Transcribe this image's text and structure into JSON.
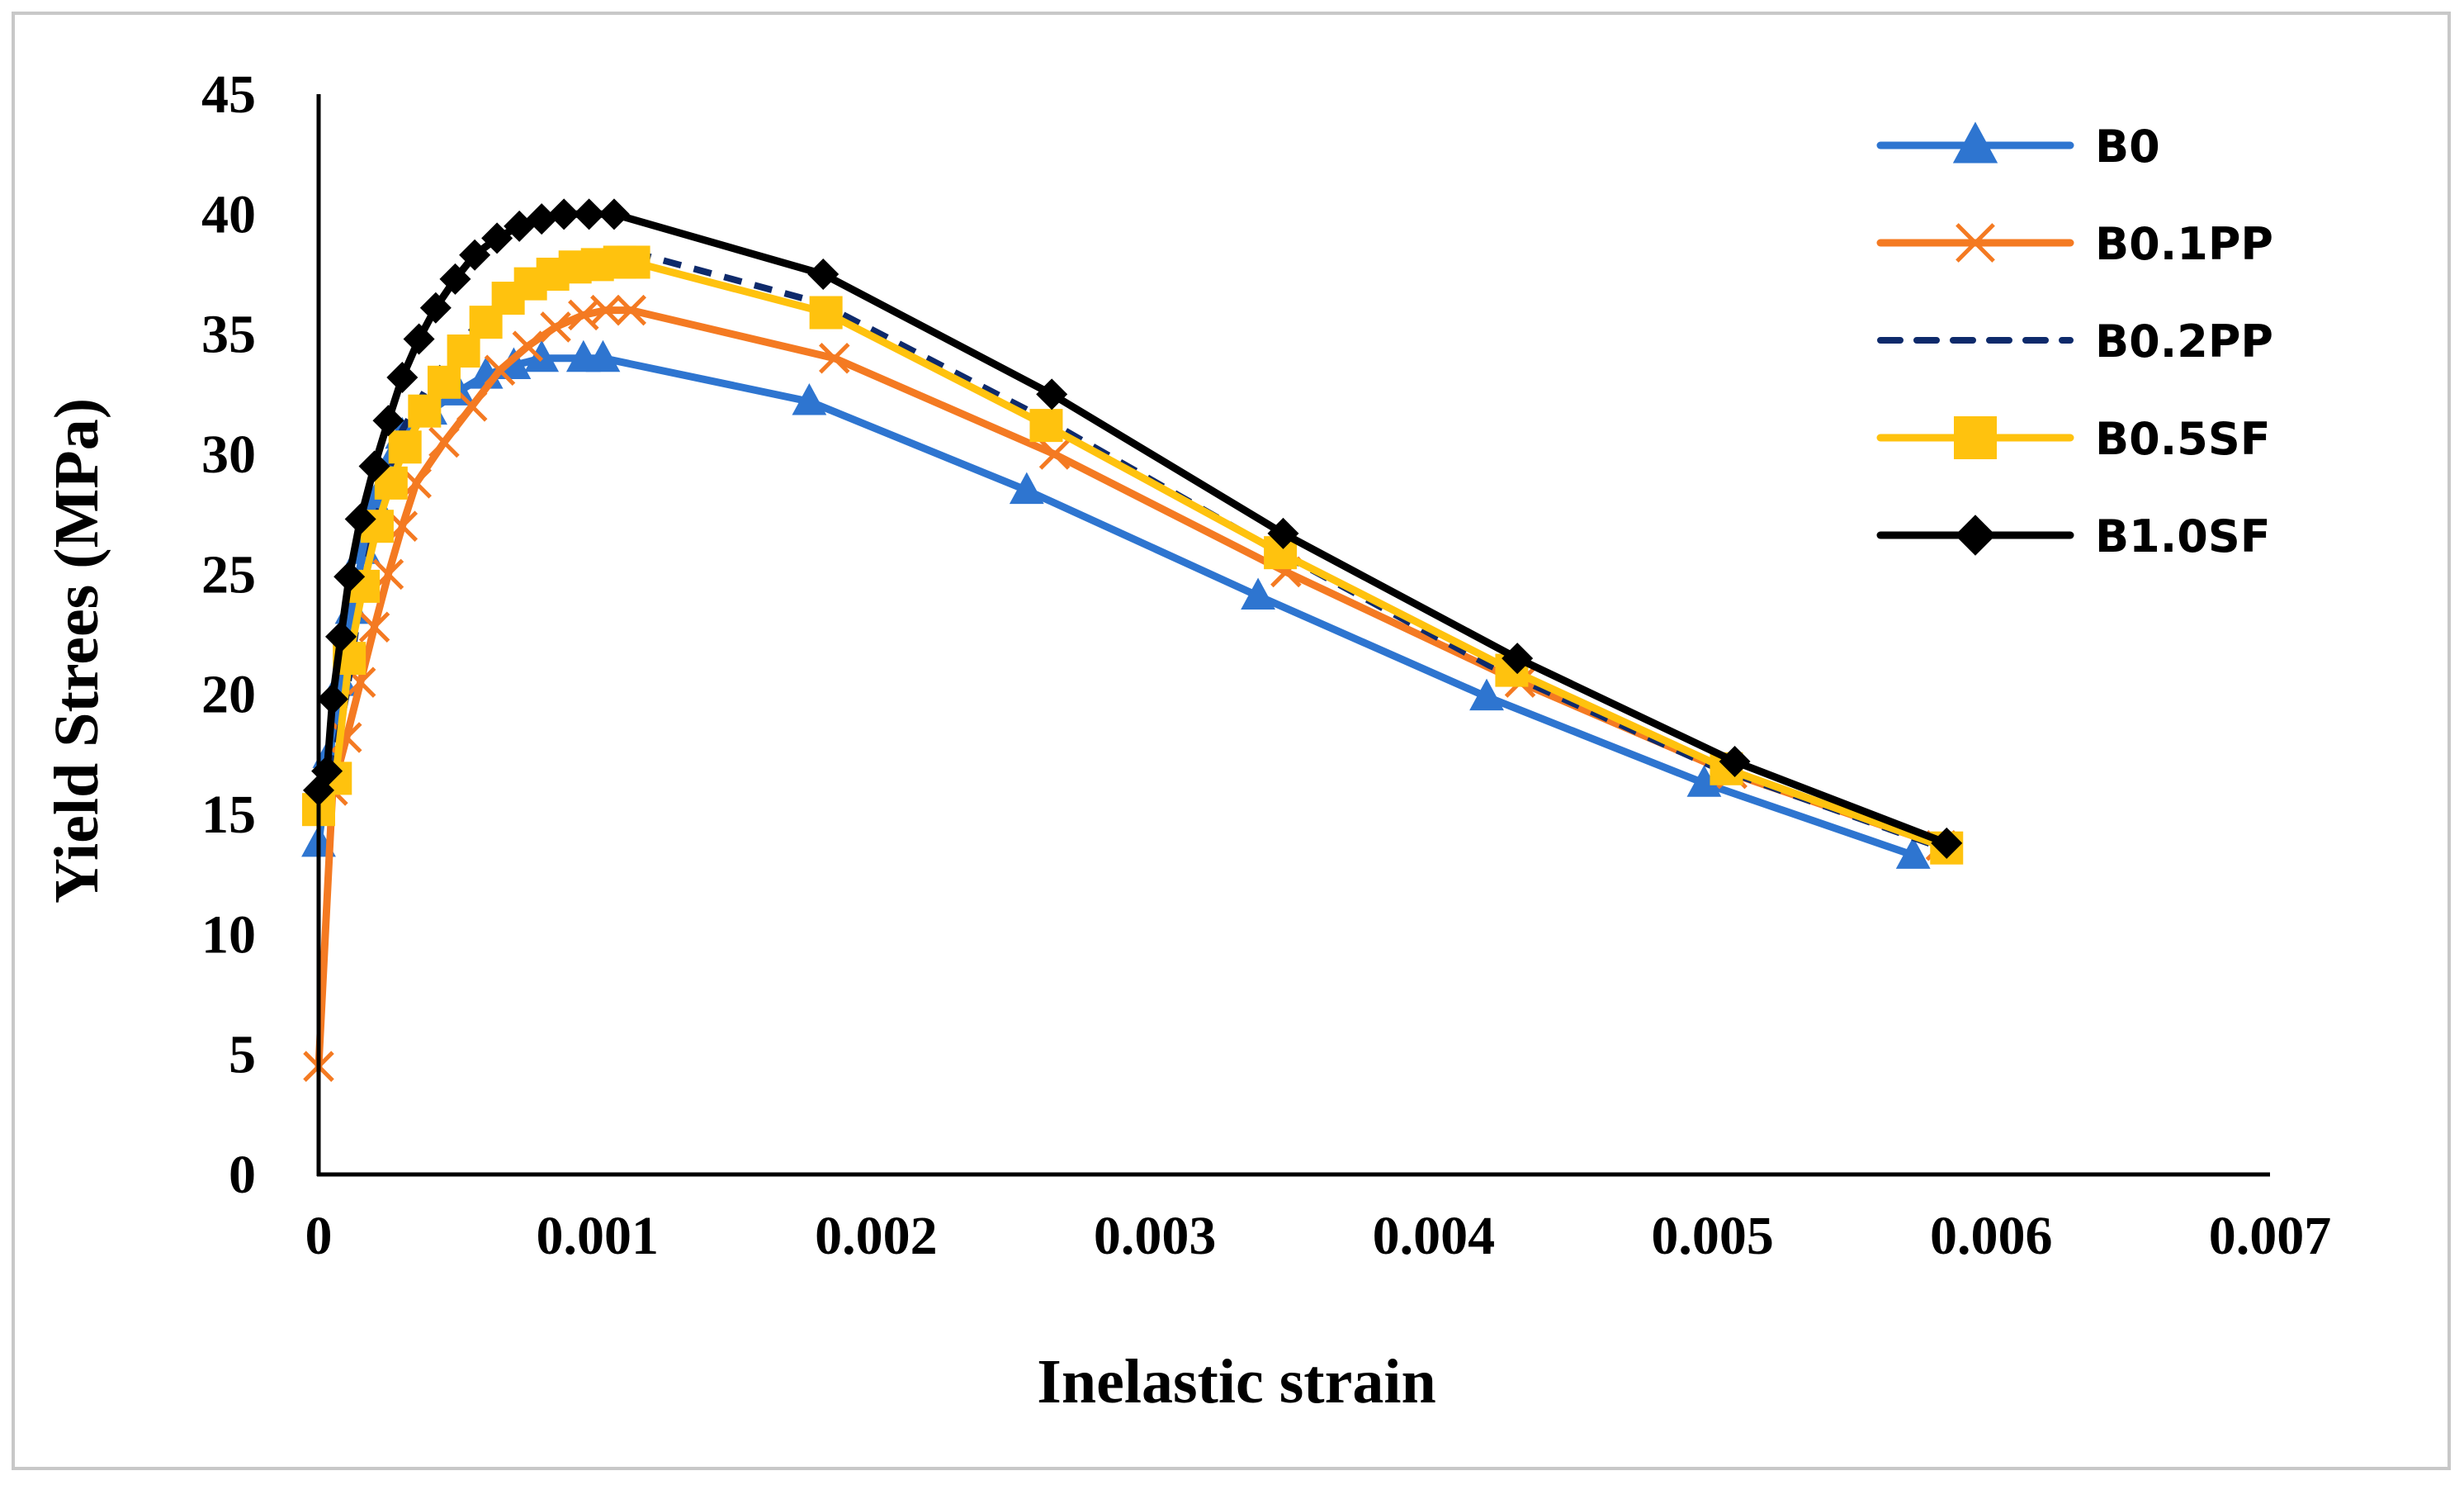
{
  "chart_data": {
    "type": "line",
    "title": "",
    "xlabel": "Inelastic strain",
    "ylabel": "Yield Strees (MPa)",
    "xlim": [
      0,
      0.007
    ],
    "ylim": [
      0,
      45
    ],
    "x_ticks": [
      "0",
      "0.001",
      "0.002",
      "0.003",
      "0.004",
      "0.005",
      "0.006",
      "0.007"
    ],
    "y_ticks": [
      "0",
      "5",
      "10",
      "15",
      "20",
      "25",
      "30",
      "35",
      "40",
      "45"
    ],
    "grid": false,
    "legend_position": "top-right",
    "series": [
      {
        "name": "B0",
        "color": "#2E75D0",
        "marker": "triangle",
        "dash": "solid",
        "points": [
          [
            0,
            13.8
          ],
          [
            4e-05,
            17.5
          ],
          [
            8e-05,
            20.5
          ],
          [
            0.00012,
            23.5
          ],
          [
            0.00016,
            26
          ],
          [
            0.0002,
            28
          ],
          [
            0.00025,
            29.5
          ],
          [
            0.0003,
            30.8
          ],
          [
            0.0004,
            31.8
          ],
          [
            0.0005,
            32.6
          ],
          [
            0.0006,
            33.3
          ],
          [
            0.0007,
            33.7
          ],
          [
            0.0008,
            34
          ],
          [
            0.00095,
            34
          ],
          [
            0.00102,
            34
          ],
          [
            0.00176,
            32.2
          ],
          [
            0.00254,
            28.5
          ],
          [
            0.00337,
            24.1
          ],
          [
            0.00419,
            19.9
          ],
          [
            0.00497,
            16.3
          ],
          [
            0.00572,
            13.3
          ]
        ]
      },
      {
        "name": "B0.1PP",
        "color": "#F47A22",
        "marker": "x",
        "dash": "solid",
        "points": [
          [
            0,
            4.5
          ],
          [
            5e-05,
            16
          ],
          [
            0.0001,
            18.2
          ],
          [
            0.00015,
            20.5
          ],
          [
            0.0002,
            22.8
          ],
          [
            0.00025,
            25
          ],
          [
            0.0003,
            27
          ],
          [
            0.00035,
            28.8
          ],
          [
            0.00045,
            30.5
          ],
          [
            0.00055,
            32
          ],
          [
            0.00065,
            33.5
          ],
          [
            0.00075,
            34.5
          ],
          [
            0.00085,
            35.3
          ],
          [
            0.00095,
            35.8
          ],
          [
            0.00103,
            36
          ],
          [
            0.00112,
            36
          ],
          [
            0.00185,
            34
          ],
          [
            0.00264,
            30
          ],
          [
            0.00347,
            25.1
          ],
          [
            0.00431,
            20.5
          ],
          [
            0.00507,
            16.7
          ],
          [
            0.00582,
            13.7
          ]
        ]
      },
      {
        "name": "B0.2PP",
        "color": "#0E2A6B",
        "marker": "none",
        "dash": "dashed",
        "points": [
          [
            0,
            15.5
          ],
          [
            5e-05,
            17
          ],
          [
            0.0001,
            20
          ],
          [
            0.00015,
            24
          ],
          [
            0.0002,
            27
          ],
          [
            0.00025,
            29
          ],
          [
            0.0003,
            31
          ],
          [
            0.0004,
            33
          ],
          [
            0.0005,
            34.5
          ],
          [
            0.0006,
            35.8
          ],
          [
            0.0007,
            36.8
          ],
          [
            0.0008,
            37.5
          ],
          [
            0.0009,
            38
          ],
          [
            0.001,
            38.3
          ],
          [
            0.0011,
            38.5
          ],
          [
            0.0018,
            36.3
          ],
          [
            0.0026,
            31.5
          ],
          [
            0.0034,
            26.2
          ],
          [
            0.0042,
            21.2
          ],
          [
            0.005,
            17
          ],
          [
            0.0058,
            13.7
          ]
        ]
      },
      {
        "name": "B0.5SF",
        "color": "#FFC20E",
        "marker": "square",
        "dash": "solid",
        "points": [
          [
            0,
            15.2
          ],
          [
            6e-05,
            16.5
          ],
          [
            0.00011,
            21.5
          ],
          [
            0.00016,
            24.5
          ],
          [
            0.00021,
            27
          ],
          [
            0.00026,
            28.8
          ],
          [
            0.00031,
            30.3
          ],
          [
            0.00038,
            31.8
          ],
          [
            0.00045,
            33
          ],
          [
            0.00052,
            34.3
          ],
          [
            0.0006,
            35.5
          ],
          [
            0.00068,
            36.5
          ],
          [
            0.00076,
            37.1
          ],
          [
            0.00084,
            37.5
          ],
          [
            0.00092,
            37.8
          ],
          [
            0.001,
            37.9
          ],
          [
            0.00108,
            38
          ],
          [
            0.00113,
            38
          ],
          [
            0.00182,
            35.9
          ],
          [
            0.00261,
            31.2
          ],
          [
            0.00345,
            25.9
          ],
          [
            0.00428,
            21
          ],
          [
            0.00505,
            16.9
          ],
          [
            0.00584,
            13.6
          ]
        ]
      },
      {
        "name": "B1.0SF",
        "color": "#000000",
        "marker": "diamond",
        "dash": "solid",
        "points": [
          [
            0,
            16
          ],
          [
            3e-05,
            16.8
          ],
          [
            5e-05,
            19.8
          ],
          [
            8e-05,
            22.4
          ],
          [
            0.00011,
            24.9
          ],
          [
            0.00015,
            27.3
          ],
          [
            0.0002,
            29.5
          ],
          [
            0.00025,
            31.4
          ],
          [
            0.0003,
            33.2
          ],
          [
            0.00036,
            34.8
          ],
          [
            0.00042,
            36.1
          ],
          [
            0.00049,
            37.3
          ],
          [
            0.00056,
            38.3
          ],
          [
            0.00064,
            39
          ],
          [
            0.00072,
            39.5
          ],
          [
            0.0008,
            39.8
          ],
          [
            0.00088,
            40
          ],
          [
            0.00097,
            40
          ],
          [
            0.00106,
            40
          ],
          [
            0.00181,
            37.5
          ],
          [
            0.00263,
            32.5
          ],
          [
            0.00346,
            26.7
          ],
          [
            0.0043,
            21.5
          ],
          [
            0.00508,
            17.2
          ],
          [
            0.00584,
            13.8
          ]
        ]
      }
    ]
  }
}
